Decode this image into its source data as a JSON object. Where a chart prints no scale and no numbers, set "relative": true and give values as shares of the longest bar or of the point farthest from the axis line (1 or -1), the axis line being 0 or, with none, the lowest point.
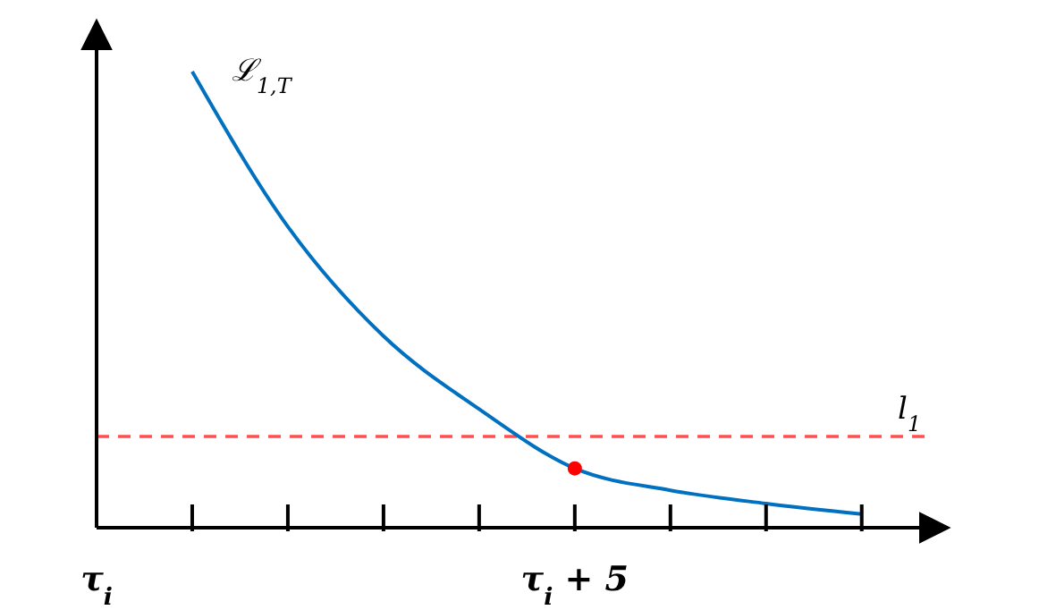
{
  "chart_data": {
    "type": "line",
    "relative": true,
    "categories": [
      "τ$_{i}$",
      null,
      null,
      null,
      null,
      "τ$_{i}$ + 5",
      null,
      null,
      null
    ],
    "series": [
      {
        "name": "ℒ$_{1,T}$",
        "color": "#0070c0",
        "values": [
          null,
          1,
          0.66,
          0.42,
          0.26,
          0.13,
          0.082,
          0.053,
          0.03
        ]
      },
      {
        "type": "scatter",
        "color": "#ff0000",
        "values": [
          null,
          null,
          null,
          null,
          null,
          0.13,
          null,
          null,
          null
        ]
      }
    ],
    "ref_lines": [
      {
        "axis": "y",
        "value": 0.2,
        "label": "l$_{1}$",
        "color": "#ff5050",
        "line_style": "dashed"
      }
    ]
  }
}
